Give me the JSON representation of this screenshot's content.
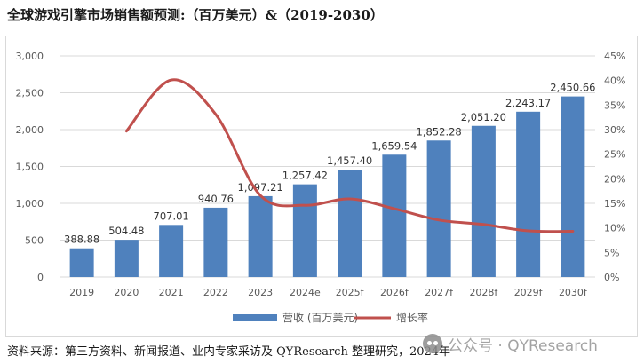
{
  "title": "全球游戏引擎市场销售额预测:（百万美元）&（2019-2030）",
  "source": "资料来源：第三方资料、新闻报道、业内专家采访及 QYResearch 整理研究，2024年",
  "watermark": {
    "text": "公众号 · QYResearch",
    "icon": "wechat-icon"
  },
  "colors": {
    "bar": "#4f81bd",
    "line": "#c0504d",
    "grid": "#d9d9d9",
    "axis_text": "#595959"
  },
  "chart_data": {
    "type": "bar",
    "categories": [
      "2019",
      "2020",
      "2021",
      "2022",
      "2023",
      "2024e",
      "2025f",
      "2026f",
      "2027f",
      "2028f",
      "2029f",
      "2030f"
    ],
    "series": [
      {
        "name": "营收 (百万美元)",
        "type": "bar",
        "axis": "left",
        "values": [
          388.88,
          504.48,
          707.01,
          940.76,
          1097.21,
          1257.42,
          1457.4,
          1659.54,
          1852.28,
          2051.2,
          2243.17,
          2450.66
        ],
        "labels": [
          "388.88",
          "504.48",
          "707.01",
          "940.76",
          "1,097.21",
          "1,257.42",
          "1,457.40",
          "1,659.54",
          "1,852.28",
          "2,051.20",
          "2,243.17",
          "2,450.66"
        ]
      },
      {
        "name": "增长率",
        "type": "line",
        "axis": "right",
        "values": [
          null,
          29.7,
          40.1,
          33.1,
          16.6,
          14.6,
          15.9,
          13.9,
          11.6,
          10.7,
          9.4,
          9.3
        ]
      }
    ],
    "y_left": {
      "ylim": [
        0,
        3000
      ],
      "ticks": [
        "0",
        "500",
        "1,000",
        "1,500",
        "2,000",
        "2,500",
        "3,000"
      ]
    },
    "y_right": {
      "ylim": [
        0,
        45
      ],
      "ticks": [
        "0%",
        "5%",
        "10%",
        "15%",
        "20%",
        "25%",
        "30%",
        "35%",
        "40%",
        "45%"
      ]
    },
    "grid": true,
    "legend_position": "bottom"
  }
}
